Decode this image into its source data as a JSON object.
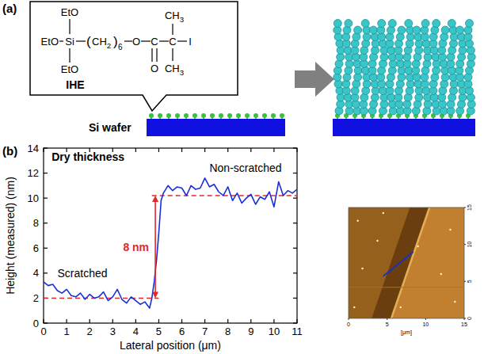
{
  "panel_a": {
    "label": "(a)",
    "molecule": {
      "name": "IHE",
      "ethoxy": [
        "EtO",
        "EtO",
        "EtO"
      ],
      "silicon": "Si",
      "spacer": {
        "group": "CH",
        "sub": "2",
        "repeat": "6"
      },
      "ester_oxygen": "O",
      "carbonyl_carbon": "C",
      "carbonyl_oxygen": "O",
      "quaternary_carbon": "C",
      "methyl": [
        {
          "group": "CH",
          "sub": "3"
        },
        {
          "group": "CH",
          "sub": "3"
        }
      ],
      "halogen": "I"
    },
    "substrate": "Si wafer"
  },
  "panel_b_label": "(b)",
  "chart_data": {
    "type": "line",
    "x_label": "Lateral position (μm)",
    "y_label": "Height (measured) (nm)",
    "color": "#1a2fd6",
    "x": [
      0,
      0.2,
      0.4,
      0.6,
      0.8,
      1.0,
      1.2,
      1.4,
      1.6,
      1.8,
      2.0,
      2.2,
      2.4,
      2.6,
      2.8,
      3.0,
      3.2,
      3.4,
      3.6,
      3.8,
      4.0,
      4.2,
      4.4,
      4.6,
      4.7,
      4.8,
      4.9,
      5.0,
      5.1,
      5.2,
      5.4,
      5.6,
      5.8,
      6.0,
      6.2,
      6.4,
      6.6,
      6.8,
      7.0,
      7.2,
      7.4,
      7.6,
      7.8,
      8.0,
      8.2,
      8.4,
      8.6,
      8.8,
      9.0,
      9.2,
      9.4,
      9.6,
      9.8,
      10.0,
      10.2,
      10.4,
      10.6,
      10.8,
      11.0
    ],
    "values": [
      3.3,
      3.0,
      3.1,
      2.6,
      2.4,
      2.7,
      2.2,
      2.1,
      2.4,
      1.9,
      2.3,
      2.0,
      2.1,
      2.5,
      1.8,
      2.1,
      2.7,
      1.9,
      1.6,
      2.1,
      1.8,
      1.5,
      1.7,
      1.2,
      2.0,
      3.3,
      5.0,
      7.2,
      9.8,
      10.4,
      11.0,
      10.6,
      10.9,
      10.8,
      10.2,
      11.0,
      10.7,
      10.8,
      11.6,
      10.9,
      11.1,
      10.5,
      10.2,
      10.9,
      9.8,
      10.4,
      9.6,
      10.0,
      10.3,
      9.5,
      10.1,
      9.9,
      10.5,
      9.3,
      11.3,
      10.2,
      10.6,
      10.4,
      10.7
    ],
    "xlim": [
      0,
      11
    ],
    "ylim": [
      0,
      14
    ],
    "xticks": [
      0,
      1,
      2,
      3,
      4,
      5,
      6,
      7,
      8,
      9,
      10,
      11
    ],
    "yticks": [
      0,
      2,
      4,
      6,
      8,
      10,
      12,
      14
    ],
    "grid": false,
    "annotations": [
      {
        "text": "Dry thickness"
      },
      {
        "text": "Non-scratched"
      },
      {
        "text": "Scratched"
      }
    ],
    "reference_lines": {
      "color": "#e0282d",
      "lines": [
        {
          "y": 2,
          "x": [
            0,
            5
          ]
        },
        {
          "y": 10.2,
          "x": [
            4.7,
            11
          ]
        }
      ]
    },
    "step": {
      "x": 4.85,
      "from": 2,
      "to": 10.2,
      "label": "8 nm"
    }
  },
  "afm_image": {
    "ticks": [
      0,
      5,
      10,
      15
    ],
    "unit_label": "[μm]",
    "profile_color": "#1530d0"
  }
}
